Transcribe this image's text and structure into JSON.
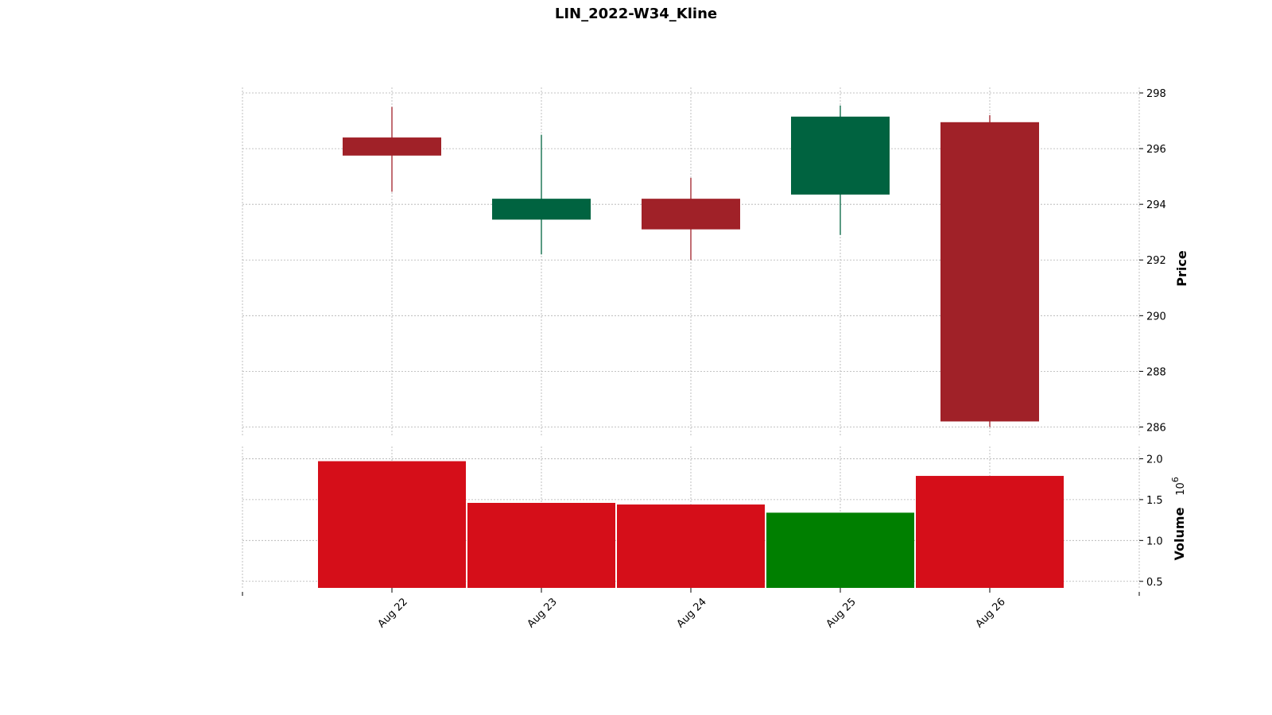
{
  "chart_data": {
    "type": "candlestick",
    "title": "LIN_2022-W34_Kline",
    "categories": [
      "Aug 22",
      "Aug 23",
      "Aug 24",
      "Aug 25",
      "Aug 26"
    ],
    "ohlc": [
      {
        "open": 296.4,
        "high": 297.5,
        "low": 294.45,
        "close": 295.75
      },
      {
        "open": 293.45,
        "high": 296.5,
        "low": 292.2,
        "close": 294.2
      },
      {
        "open": 294.2,
        "high": 294.95,
        "low": 292.0,
        "close": 293.1
      },
      {
        "open": 294.35,
        "high": 297.55,
        "low": 292.9,
        "close": 297.15
      },
      {
        "open": 296.95,
        "high": 297.2,
        "low": 286.0,
        "close": 286.2
      }
    ],
    "volume": [
      1.97,
      1.46,
      1.44,
      1.34,
      1.79
    ],
    "volume_colors": [
      "#d50e19",
      "#d50e19",
      "#d50e19",
      "#007f00",
      "#d50e19"
    ],
    "price_axis": {
      "label": "Price",
      "ticks": [
        286,
        288,
        290,
        292,
        294,
        296,
        298
      ],
      "ylim": [
        285.7,
        298.2
      ]
    },
    "volume_axis": {
      "label": "Volume",
      "exponent_label": "10",
      "exponent": "6",
      "ticks": [
        "0.5",
        "1.0",
        "1.5",
        "2.0"
      ],
      "tick_values": [
        0.5,
        1.0,
        1.5,
        2.0
      ],
      "ylim": [
        0.42,
        2.15
      ]
    },
    "colors": {
      "up": "#006340",
      "down": "#a02128"
    },
    "grid": true
  }
}
